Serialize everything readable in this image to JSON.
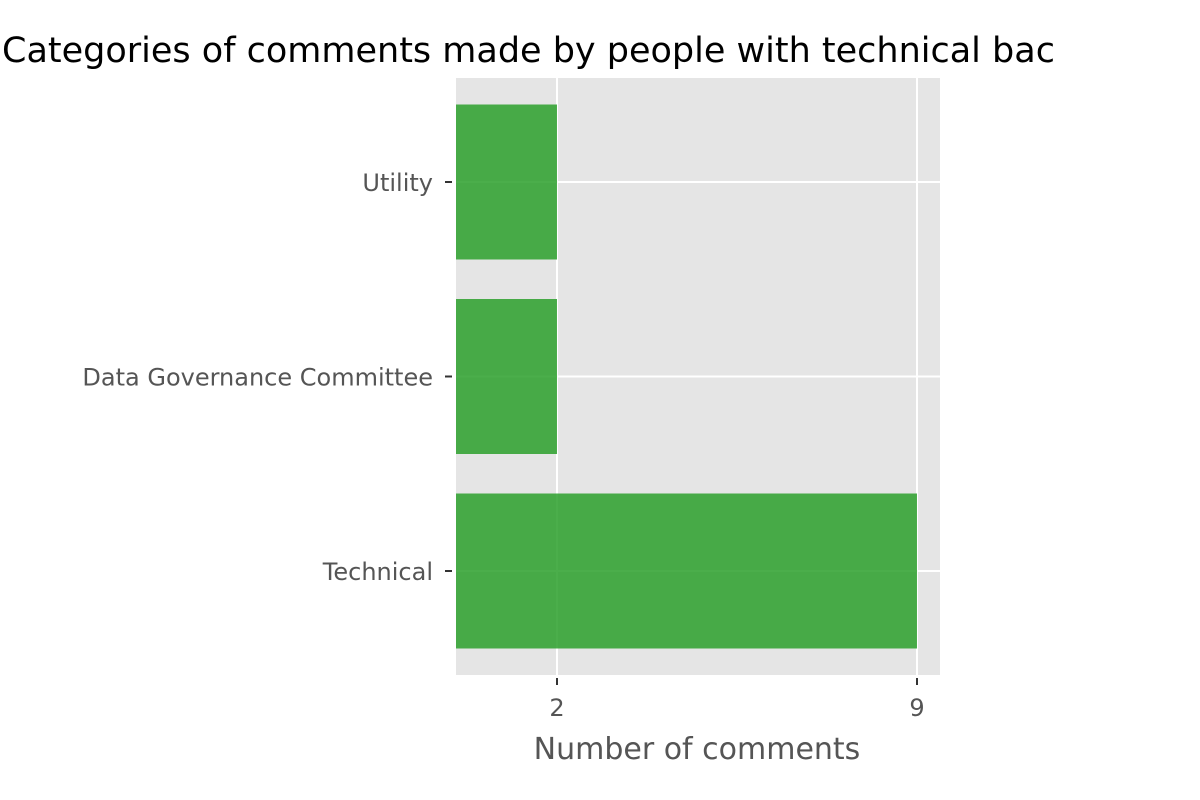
{
  "chart_data": {
    "type": "bar",
    "orientation": "horizontal",
    "title": "Categories of comments made by people with technical bac",
    "xlabel": "Number of comments",
    "ylabel": "",
    "categories": [
      "Utility",
      "Data Governance Committee",
      "Technical"
    ],
    "values": [
      2,
      2,
      9
    ],
    "x_ticks": [
      2,
      9
    ],
    "xlim": [
      0,
      9.6
    ],
    "grid": true,
    "legend": "none",
    "colors": {
      "bar": "#2ca02c",
      "panel_background": "#e5e5e5",
      "grid": "#ffffff",
      "tick_text": "#555555",
      "title_text": "#000000"
    }
  }
}
